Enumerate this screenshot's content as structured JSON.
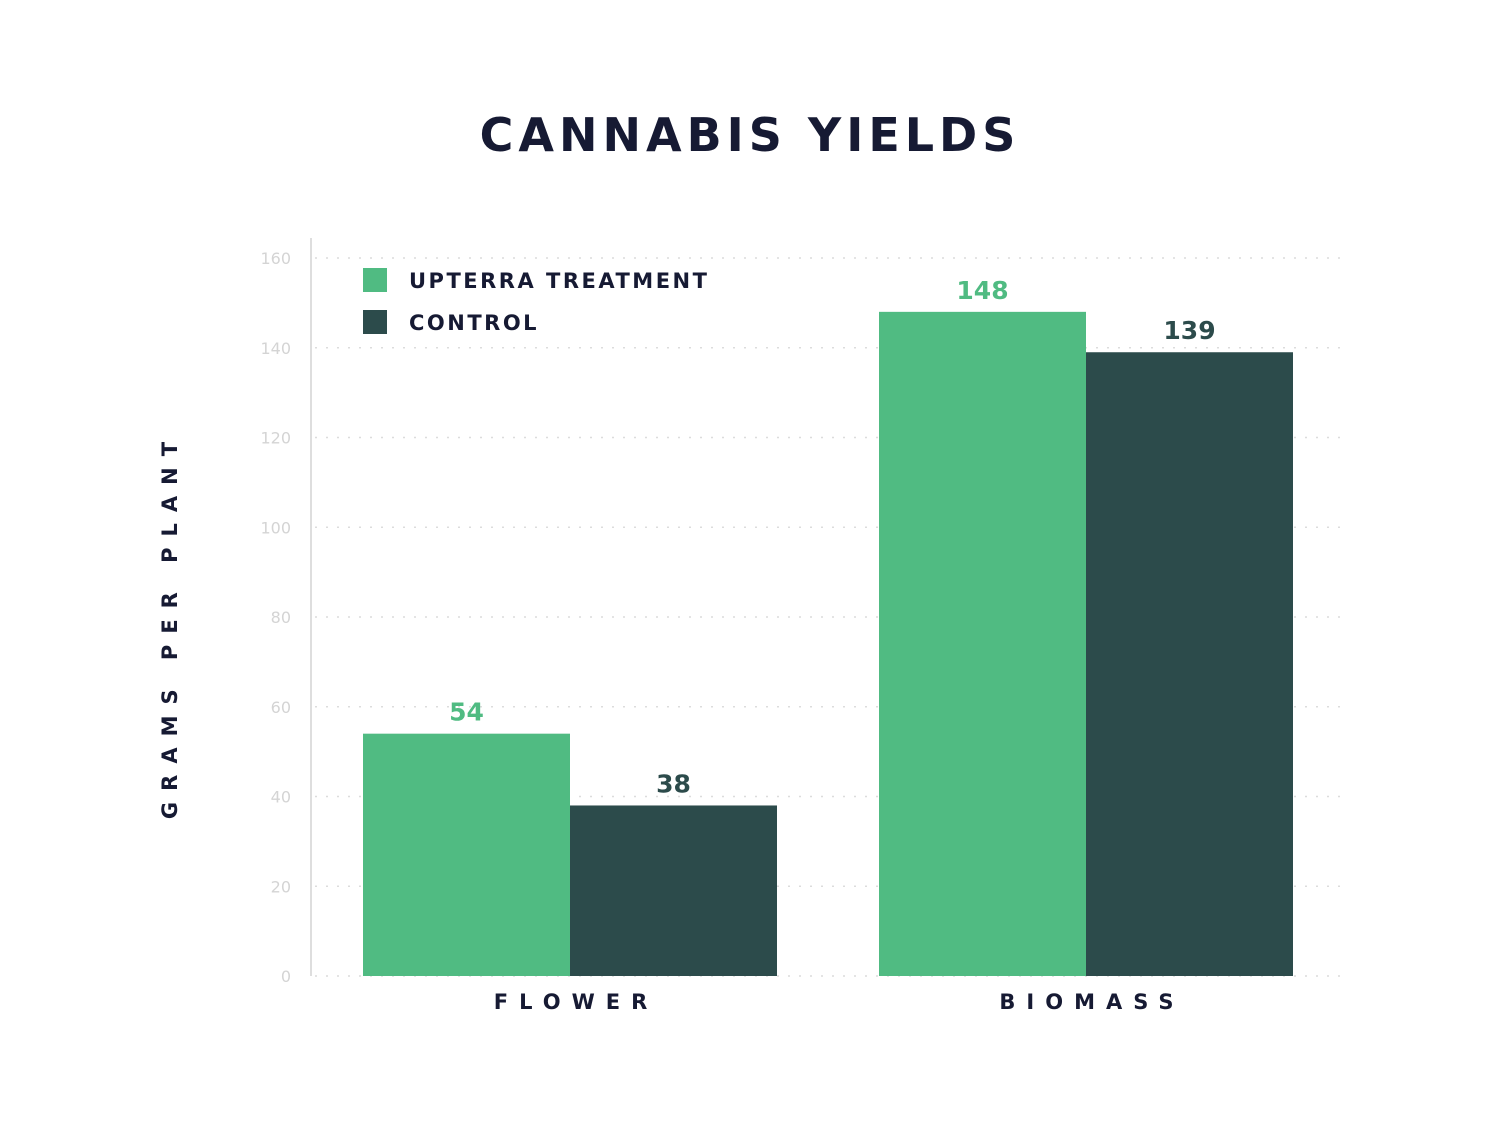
{
  "chart_data": {
    "type": "bar",
    "title": "CANNABIS YIELDS",
    "ylabel": "GRAMS PER PLANT",
    "xlabel": "",
    "categories": [
      "FLOWER",
      "BIOMASS"
    ],
    "series": [
      {
        "name": "UPTERRA TREATMENT",
        "values": [
          54,
          148
        ],
        "color": "#50bb82"
      },
      {
        "name": "CONTROL",
        "values": [
          38,
          139
        ],
        "color": "#2c4b4b"
      }
    ],
    "data_labels": [
      [
        "54",
        "148"
      ],
      [
        "38",
        "139"
      ]
    ],
    "ylim": [
      0,
      160
    ],
    "yticks": [
      0,
      20,
      40,
      60,
      80,
      100,
      120,
      140,
      160
    ],
    "grid": true,
    "legend_position": "top-left"
  }
}
